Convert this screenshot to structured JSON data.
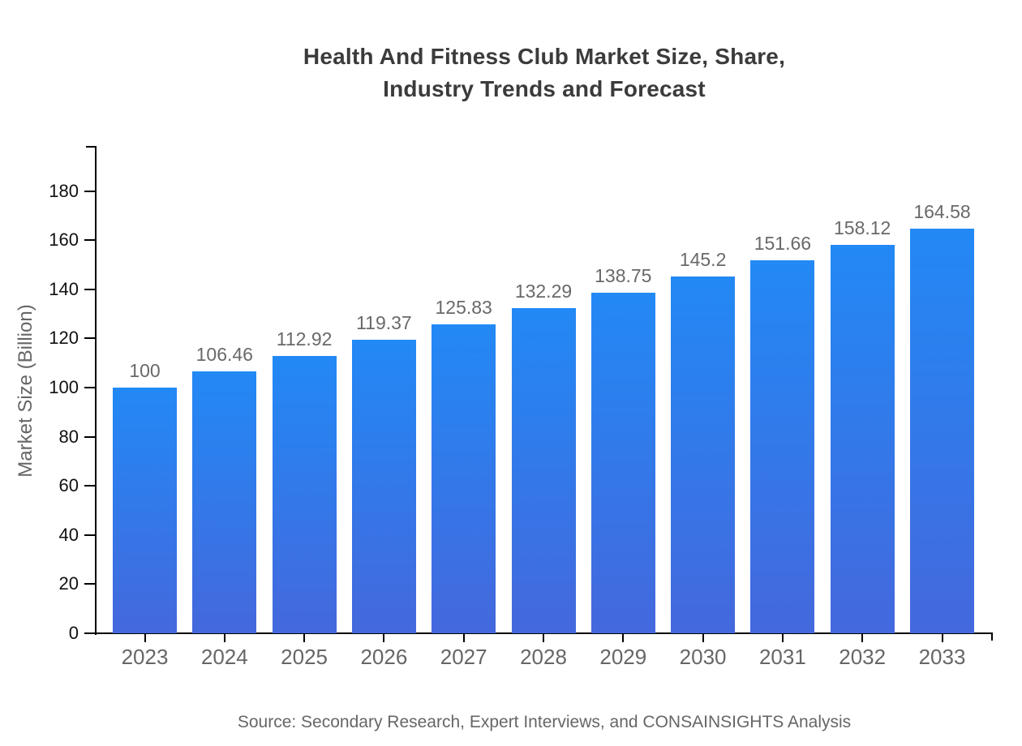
{
  "chart_data": {
    "type": "bar",
    "title": "Health And Fitness Club Market Size, Share, Industry Trends and Forecast",
    "title_lines": [
      "Health And Fitness Club Market Size, Share,",
      "Industry Trends and Forecast"
    ],
    "categories": [
      "2023",
      "2024",
      "2025",
      "2026",
      "2027",
      "2028",
      "2029",
      "2030",
      "2031",
      "2032",
      "2033"
    ],
    "values": [
      100,
      106.46,
      112.92,
      119.37,
      125.83,
      132.29,
      138.75,
      145.2,
      151.66,
      158.12,
      164.58
    ],
    "value_labels": [
      "100",
      "106.46",
      "112.92",
      "119.37",
      "125.83",
      "132.29",
      "138.75",
      "145.2",
      "151.66",
      "158.12",
      "164.58"
    ],
    "xlabel": "",
    "ylabel": "Market Size (Billion)",
    "yticks": [
      0,
      20,
      40,
      60,
      80,
      100,
      120,
      140,
      160,
      180
    ],
    "ylim": [
      0,
      198
    ],
    "grid": false,
    "legend_position": "none",
    "source": "Source: Secondary Research, Expert Interviews, and CONSAINSIGHTS Analysis",
    "colors": {
      "bar_gradient_top": "#2289F5",
      "bar_gradient_bottom": "#4468DD",
      "axis": "#000000",
      "ytick_label": "#111111",
      "xtick_label": "#666666",
      "value_label": "#696969",
      "title": "#3b3b3b",
      "ylabel": "#666666",
      "source": "#666666"
    }
  }
}
